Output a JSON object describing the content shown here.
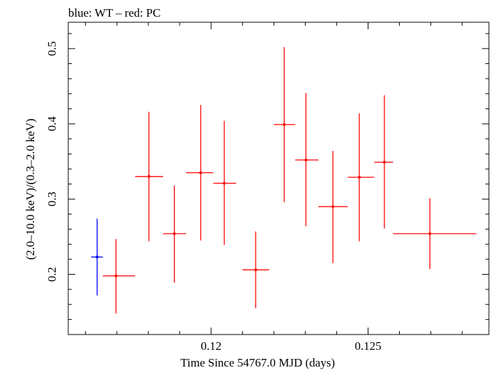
{
  "chart_data": {
    "type": "scatter",
    "title": "blue: WT – red: PC",
    "xlabel": "Time Since 54767.0 MJD (days)",
    "ylabel": "(2.0–10.0 keV)/(0.3–2.0 keV)",
    "xlim": [
      0.11545,
      0.12885
    ],
    "ylim": [
      0.12,
      0.535
    ],
    "x_ticks": [
      {
        "value": 0.12,
        "label": "0.12"
      },
      {
        "value": 0.125,
        "label": "0.125"
      }
    ],
    "y_ticks": [
      {
        "value": 0.2,
        "label": "0.2"
      },
      {
        "value": 0.3,
        "label": "0.3"
      },
      {
        "value": 0.4,
        "label": "0.4"
      },
      {
        "value": 0.5,
        "label": "0.5"
      }
    ],
    "grid": false,
    "legend": "none",
    "colors": {
      "WT": "#0000ff",
      "PC": "#ff0000"
    },
    "series": [
      {
        "mode": "WT",
        "color": "#0000ff",
        "points": [
          {
            "x": 0.11637,
            "xlo": 0.11618,
            "xhi": 0.11655,
            "y": 0.223,
            "ylo": 0.172,
            "yhi": 0.274
          }
        ]
      },
      {
        "mode": "PC",
        "color": "#ff0000",
        "points": [
          {
            "x": 0.11697,
            "xlo": 0.11655,
            "xhi": 0.11758,
            "y": 0.198,
            "ylo": 0.148,
            "yhi": 0.247
          },
          {
            "x": 0.11802,
            "xlo": 0.11758,
            "xhi": 0.11847,
            "y": 0.33,
            "ylo": 0.244,
            "yhi": 0.416
          },
          {
            "x": 0.11883,
            "xlo": 0.11847,
            "xhi": 0.1192,
            "y": 0.254,
            "ylo": 0.189,
            "yhi": 0.318
          },
          {
            "x": 0.11967,
            "xlo": 0.1192,
            "xhi": 0.12007,
            "y": 0.335,
            "ylo": 0.245,
            "yhi": 0.425
          },
          {
            "x": 0.12042,
            "xlo": 0.12007,
            "xhi": 0.1208,
            "y": 0.321,
            "ylo": 0.239,
            "yhi": 0.404
          },
          {
            "x": 0.12142,
            "xlo": 0.121,
            "xhi": 0.12185,
            "y": 0.206,
            "ylo": 0.155,
            "yhi": 0.257
          },
          {
            "x": 0.12233,
            "xlo": 0.122,
            "xhi": 0.12268,
            "y": 0.399,
            "ylo": 0.296,
            "yhi": 0.502
          },
          {
            "x": 0.12302,
            "xlo": 0.12268,
            "xhi": 0.12342,
            "y": 0.352,
            "ylo": 0.264,
            "yhi": 0.441
          },
          {
            "x": 0.12388,
            "xlo": 0.12342,
            "xhi": 0.12435,
            "y": 0.29,
            "ylo": 0.215,
            "yhi": 0.364
          },
          {
            "x": 0.12472,
            "xlo": 0.12435,
            "xhi": 0.1252,
            "y": 0.329,
            "ylo": 0.244,
            "yhi": 0.414
          },
          {
            "x": 0.12552,
            "xlo": 0.1252,
            "xhi": 0.1258,
            "y": 0.349,
            "ylo": 0.261,
            "yhi": 0.438
          },
          {
            "x": 0.12697,
            "xlo": 0.1258,
            "xhi": 0.12845,
            "y": 0.254,
            "ylo": 0.207,
            "yhi": 0.301
          }
        ]
      }
    ]
  }
}
